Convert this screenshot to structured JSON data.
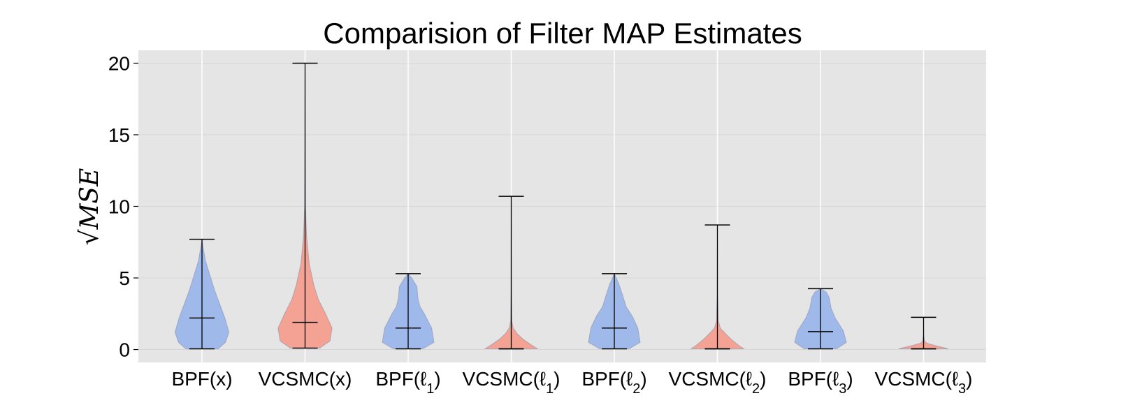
{
  "chart_data": {
    "type": "violin",
    "title": "Comparision of Filter MAP Estimates",
    "ylabel": "√MSE",
    "xlabel": "",
    "ylim": [
      -0.9,
      20.9
    ],
    "yticks": [
      0,
      5,
      10,
      15,
      20
    ],
    "grid": true,
    "categories": [
      "BPF(x)",
      "VCSMC(x)",
      "BPF(ℓ1)",
      "VCSMC(ℓ1)",
      "BPF(ℓ2)",
      "VCSMC(ℓ2)",
      "BPF(ℓ3)",
      "VCSMC(ℓ3)"
    ],
    "category_labels": [
      {
        "base": "BPF(x",
        "sub": "",
        "close": ")"
      },
      {
        "base": "VCSMC(x",
        "sub": "",
        "close": ")"
      },
      {
        "base": "BPF(ℓ",
        "sub": "1",
        "close": ")"
      },
      {
        "base": "VCSMC(ℓ",
        "sub": "1",
        "close": ")"
      },
      {
        "base": "BPF(ℓ",
        "sub": "2",
        "close": ")"
      },
      {
        "base": "VCSMC(ℓ",
        "sub": "2",
        "close": ")"
      },
      {
        "base": "BPF(ℓ",
        "sub": "3",
        "close": ")"
      },
      {
        "base": "VCSMC(ℓ",
        "sub": "3",
        "close": ")"
      }
    ],
    "colors": {
      "BPF": "#9fb9ea",
      "VCSMC": "#f3a293",
      "background": "#e5e5e5",
      "grid": "#ffffff"
    },
    "violins": [
      {
        "family": "BPF",
        "min": 0.05,
        "max": 7.7,
        "median": 2.2,
        "profile": [
          [
            0.05,
            0.55
          ],
          [
            0.5,
            0.8
          ],
          [
            1.2,
            0.92
          ],
          [
            2.2,
            0.78
          ],
          [
            3.2,
            0.6
          ],
          [
            4.2,
            0.42
          ],
          [
            5.2,
            0.27
          ],
          [
            6.2,
            0.12
          ],
          [
            7.0,
            0.05
          ],
          [
            7.7,
            0.0
          ]
        ]
      },
      {
        "family": "VCSMC",
        "min": 0.1,
        "max": 20.0,
        "median": 1.9,
        "profile": [
          [
            0.1,
            0.5
          ],
          [
            0.6,
            0.85
          ],
          [
            1.5,
            0.92
          ],
          [
            2.5,
            0.7
          ],
          [
            3.5,
            0.45
          ],
          [
            4.5,
            0.3
          ],
          [
            6.0,
            0.14
          ],
          [
            8.0,
            0.05
          ],
          [
            10.0,
            0.015
          ],
          [
            15.0,
            0.005
          ],
          [
            20.0,
            0.0
          ]
        ]
      },
      {
        "family": "BPF",
        "min": 0.05,
        "max": 5.3,
        "median": 1.5,
        "profile": [
          [
            0.05,
            0.5
          ],
          [
            0.5,
            0.88
          ],
          [
            1.5,
            0.8
          ],
          [
            2.5,
            0.55
          ],
          [
            3.0,
            0.4
          ],
          [
            3.6,
            0.33
          ],
          [
            4.4,
            0.3
          ],
          [
            5.0,
            0.12
          ],
          [
            5.3,
            0.0
          ]
        ]
      },
      {
        "family": "VCSMC",
        "min": 0.05,
        "max": 10.7,
        "median": 0.05,
        "profile": [
          [
            0.05,
            0.9
          ],
          [
            0.3,
            0.7
          ],
          [
            0.7,
            0.42
          ],
          [
            1.1,
            0.2
          ],
          [
            1.5,
            0.07
          ],
          [
            2.0,
            0.02
          ],
          [
            4.0,
            0.006
          ],
          [
            10.7,
            0.0
          ]
        ]
      },
      {
        "family": "BPF",
        "min": 0.05,
        "max": 5.3,
        "median": 1.5,
        "profile": [
          [
            0.05,
            0.5
          ],
          [
            0.5,
            0.88
          ],
          [
            1.5,
            0.8
          ],
          [
            2.3,
            0.62
          ],
          [
            3.0,
            0.4
          ],
          [
            3.8,
            0.28
          ],
          [
            4.6,
            0.15
          ],
          [
            5.3,
            0.0
          ]
        ]
      },
      {
        "family": "VCSMC",
        "min": 0.05,
        "max": 8.7,
        "median": 0.05,
        "profile": [
          [
            0.05,
            0.9
          ],
          [
            0.3,
            0.72
          ],
          [
            0.7,
            0.48
          ],
          [
            1.1,
            0.28
          ],
          [
            1.5,
            0.1
          ],
          [
            2.0,
            0.03
          ],
          [
            4.0,
            0.006
          ],
          [
            8.7,
            0.0
          ]
        ]
      },
      {
        "family": "BPF",
        "min": 0.05,
        "max": 4.25,
        "median": 1.25,
        "profile": [
          [
            0.05,
            0.55
          ],
          [
            0.5,
            0.88
          ],
          [
            1.3,
            0.78
          ],
          [
            2.2,
            0.5
          ],
          [
            2.9,
            0.36
          ],
          [
            3.6,
            0.3
          ],
          [
            4.0,
            0.2
          ],
          [
            4.25,
            0.0
          ]
        ]
      },
      {
        "family": "VCSMC",
        "min": 0.05,
        "max": 2.25,
        "median": 0.05,
        "profile": [
          [
            0.05,
            0.85
          ],
          [
            0.15,
            0.65
          ],
          [
            0.3,
            0.35
          ],
          [
            0.45,
            0.1
          ],
          [
            0.6,
            0.03
          ],
          [
            1.0,
            0.005
          ],
          [
            2.25,
            0.0
          ]
        ]
      }
    ]
  }
}
